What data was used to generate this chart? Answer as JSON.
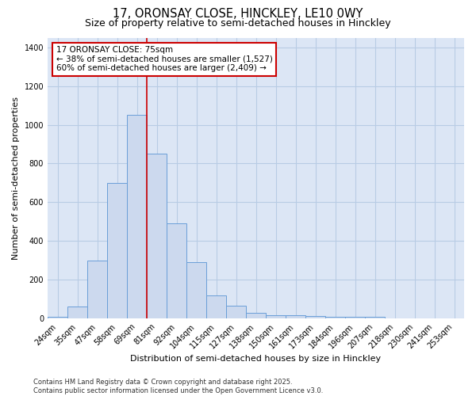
{
  "title1": "17, ORONSAY CLOSE, HINCKLEY, LE10 0WY",
  "title2": "Size of property relative to semi-detached houses in Hinckley",
  "xlabel": "Distribution of semi-detached houses by size in Hinckley",
  "ylabel": "Number of semi-detached properties",
  "bins": [
    "24sqm",
    "35sqm",
    "47sqm",
    "58sqm",
    "69sqm",
    "81sqm",
    "92sqm",
    "104sqm",
    "115sqm",
    "127sqm",
    "138sqm",
    "150sqm",
    "161sqm",
    "173sqm",
    "184sqm",
    "196sqm",
    "207sqm",
    "218sqm",
    "230sqm",
    "241sqm",
    "253sqm"
  ],
  "values": [
    8,
    60,
    300,
    700,
    1050,
    850,
    490,
    290,
    120,
    65,
    30,
    18,
    18,
    12,
    8,
    8,
    8,
    0,
    0,
    0,
    0
  ],
  "bar_color": "#ccd9ee",
  "bar_edge_color": "#6a9fd8",
  "annotation_title": "17 ORONSAY CLOSE: 75sqm",
  "annotation_line1": "← 38% of semi-detached houses are smaller (1,527)",
  "annotation_line2": "60% of semi-detached houses are larger (2,409) →",
  "box_edge_color": "#cc0000",
  "vertical_line_color": "#cc0000",
  "ylim": [
    0,
    1450
  ],
  "yticks": [
    0,
    200,
    400,
    600,
    800,
    1000,
    1200,
    1400
  ],
  "grid_color": "#b8cce4",
  "bg_color": "#dce6f5",
  "footer": "Contains HM Land Registry data © Crown copyright and database right 2025.\nContains public sector information licensed under the Open Government Licence v3.0.",
  "title1_fontsize": 10.5,
  "title2_fontsize": 9,
  "axis_label_fontsize": 8,
  "tick_fontsize": 7,
  "annotation_fontsize": 7.5,
  "footer_fontsize": 6
}
